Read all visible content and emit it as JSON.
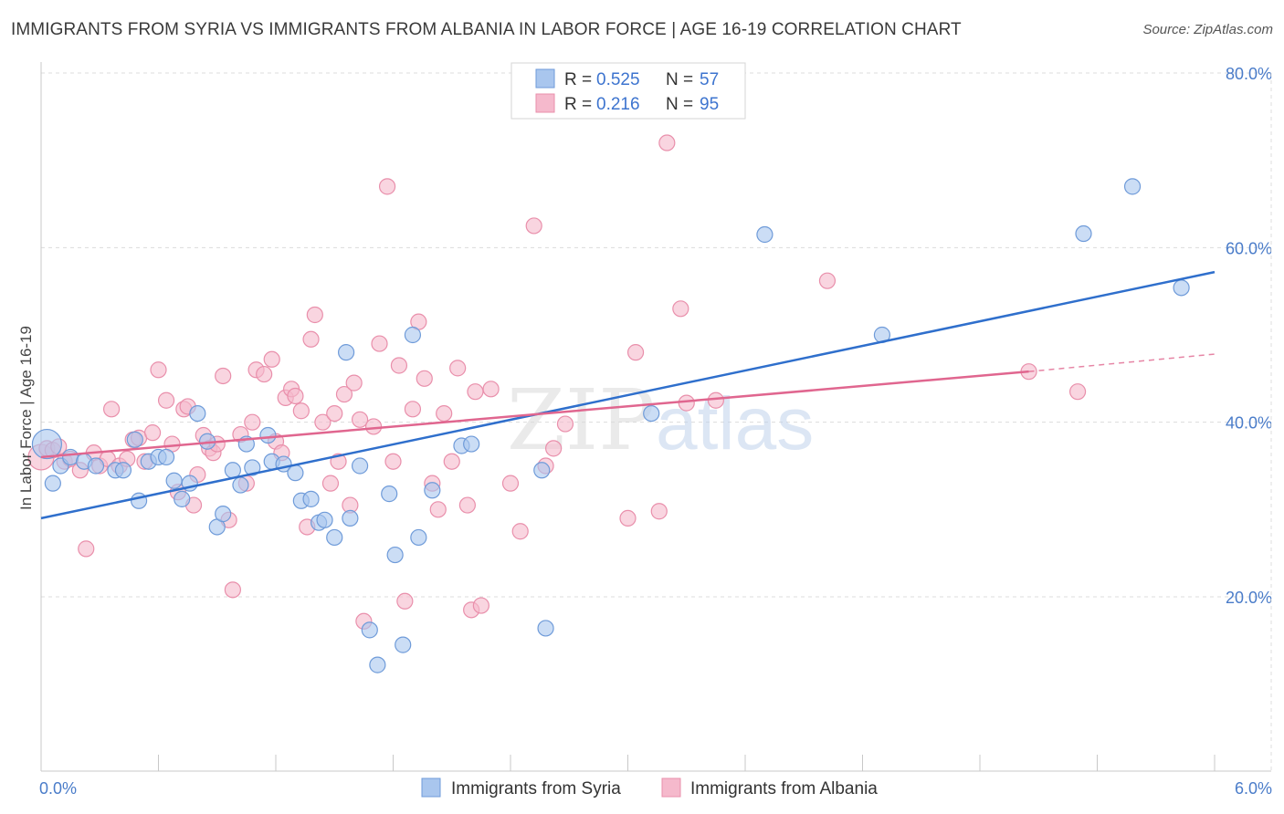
{
  "title": "IMMIGRANTS FROM SYRIA VS IMMIGRANTS FROM ALBANIA IN LABOR FORCE | AGE 16-19 CORRELATION CHART",
  "source": "Source: ZipAtlas.com",
  "watermark": {
    "zip": "ZIP",
    "atlas": "atlas"
  },
  "colors": {
    "syria_fill": "#a9c6ee",
    "syria_stroke": "#6f9bd9",
    "syria_line": "#2f6fcc",
    "albania_fill": "#f5b9cc",
    "albania_stroke": "#e98fab",
    "albania_line": "#e0668f",
    "grid": "#dcdcdc",
    "axis_text": "#4a7cc9"
  },
  "legend": {
    "r_label": "R =",
    "n_label": "N =",
    "items": [
      {
        "r": "0.525",
        "n": "57"
      },
      {
        "r": "0.216",
        "n": "95"
      }
    ]
  },
  "bottom_legend": [
    "Immigrants from Syria",
    "Immigrants from Albania"
  ],
  "chart_data": {
    "type": "scatter",
    "title": "IMMIGRANTS FROM SYRIA VS IMMIGRANTS FROM ALBANIA IN LABOR FORCE | AGE 16-19 CORRELATION CHART",
    "xlabel": "",
    "ylabel": "In Labor Force | Age 16-19",
    "xlim": [
      0,
      6
    ],
    "ylim": [
      0,
      82
    ],
    "x_tick_labels": [
      "0.0%",
      "6.0%"
    ],
    "y_ticks": [
      20,
      40,
      60,
      80
    ],
    "y_tick_labels": [
      "20.0%",
      "40.0%",
      "60.0%",
      "80.0%"
    ],
    "grid": true,
    "legend_position": "top-center",
    "series": [
      {
        "name": "Immigrants from Syria",
        "r": 0.525,
        "n": 57,
        "trend": {
          "x": [
            0,
            6
          ],
          "y": [
            29.0,
            57.2
          ]
        },
        "points": [
          [
            0.03,
            37.5
          ],
          [
            0.06,
            33.0
          ],
          [
            0.1,
            35.0
          ],
          [
            0.15,
            36.0
          ],
          [
            0.22,
            35.5
          ],
          [
            0.28,
            35.0
          ],
          [
            0.38,
            34.5
          ],
          [
            0.42,
            34.5
          ],
          [
            0.48,
            38.0
          ],
          [
            0.5,
            31.0
          ],
          [
            0.55,
            35.5
          ],
          [
            0.6,
            36.0
          ],
          [
            0.64,
            36.0
          ],
          [
            0.68,
            33.3
          ],
          [
            0.72,
            31.2
          ],
          [
            0.76,
            33.0
          ],
          [
            0.8,
            41.0
          ],
          [
            0.85,
            37.8
          ],
          [
            0.9,
            28.0
          ],
          [
            0.93,
            29.5
          ],
          [
            0.98,
            34.5
          ],
          [
            1.02,
            32.8
          ],
          [
            1.05,
            37.5
          ],
          [
            1.08,
            34.8
          ],
          [
            1.16,
            38.5
          ],
          [
            1.18,
            35.5
          ],
          [
            1.24,
            35.2
          ],
          [
            1.3,
            34.2
          ],
          [
            1.33,
            31.0
          ],
          [
            1.38,
            31.2
          ],
          [
            1.42,
            28.5
          ],
          [
            1.45,
            28.8
          ],
          [
            1.5,
            26.8
          ],
          [
            1.56,
            48.0
          ],
          [
            1.58,
            29.0
          ],
          [
            1.63,
            35.0
          ],
          [
            1.68,
            16.2
          ],
          [
            1.72,
            12.2
          ],
          [
            1.78,
            31.8
          ],
          [
            1.81,
            24.8
          ],
          [
            1.85,
            14.5
          ],
          [
            1.9,
            50.0
          ],
          [
            1.93,
            26.8
          ],
          [
            2.0,
            32.2
          ],
          [
            2.15,
            37.3
          ],
          [
            2.2,
            37.5
          ],
          [
            2.56,
            34.5
          ],
          [
            2.58,
            16.4
          ],
          [
            3.12,
            41.0
          ],
          [
            3.7,
            61.5
          ],
          [
            4.3,
            50.0
          ],
          [
            5.33,
            61.6
          ],
          [
            5.58,
            67.0
          ],
          [
            5.83,
            55.4
          ]
        ]
      },
      {
        "name": "Immigrants from Albania",
        "r": 0.216,
        "n": 95,
        "trend": {
          "x": [
            0,
            5.05
          ],
          "y": [
            36.0,
            45.8
          ]
        },
        "trend_dashed": {
          "x": [
            5.05,
            6
          ],
          "y": [
            45.8,
            47.8
          ]
        },
        "points": [
          [
            0.0,
            36.0
          ],
          [
            0.03,
            37.0
          ],
          [
            0.06,
            36.8
          ],
          [
            0.09,
            37.2
          ],
          [
            0.12,
            35.5
          ],
          [
            0.15,
            35.8
          ],
          [
            0.2,
            34.5
          ],
          [
            0.23,
            25.5
          ],
          [
            0.27,
            36.5
          ],
          [
            0.3,
            35.0
          ],
          [
            0.34,
            35.8
          ],
          [
            0.36,
            41.5
          ],
          [
            0.4,
            35.0
          ],
          [
            0.44,
            35.8
          ],
          [
            0.47,
            38.0
          ],
          [
            0.5,
            38.2
          ],
          [
            0.53,
            35.5
          ],
          [
            0.57,
            38.8
          ],
          [
            0.6,
            46.0
          ],
          [
            0.64,
            42.5
          ],
          [
            0.67,
            37.5
          ],
          [
            0.7,
            32.0
          ],
          [
            0.73,
            41.5
          ],
          [
            0.75,
            41.8
          ],
          [
            0.78,
            30.5
          ],
          [
            0.8,
            34.0
          ],
          [
            0.83,
            38.5
          ],
          [
            0.86,
            37.0
          ],
          [
            0.88,
            36.5
          ],
          [
            0.9,
            37.5
          ],
          [
            0.93,
            45.3
          ],
          [
            0.96,
            28.8
          ],
          [
            0.98,
            20.8
          ],
          [
            1.02,
            38.6
          ],
          [
            1.05,
            33.0
          ],
          [
            1.08,
            40.0
          ],
          [
            1.1,
            46.0
          ],
          [
            1.14,
            45.5
          ],
          [
            1.18,
            47.2
          ],
          [
            1.2,
            37.8
          ],
          [
            1.23,
            36.5
          ],
          [
            1.25,
            42.8
          ],
          [
            1.28,
            43.8
          ],
          [
            1.3,
            43.0
          ],
          [
            1.33,
            41.3
          ],
          [
            1.36,
            28.0
          ],
          [
            1.38,
            49.5
          ],
          [
            1.4,
            52.3
          ],
          [
            1.44,
            40.0
          ],
          [
            1.48,
            33.0
          ],
          [
            1.5,
            41.0
          ],
          [
            1.52,
            35.5
          ],
          [
            1.55,
            43.2
          ],
          [
            1.58,
            30.5
          ],
          [
            1.6,
            44.5
          ],
          [
            1.63,
            40.3
          ],
          [
            1.65,
            17.2
          ],
          [
            1.7,
            39.5
          ],
          [
            1.73,
            49.0
          ],
          [
            1.77,
            67.0
          ],
          [
            1.8,
            35.5
          ],
          [
            1.83,
            46.5
          ],
          [
            1.86,
            19.5
          ],
          [
            1.9,
            41.5
          ],
          [
            1.93,
            51.5
          ],
          [
            1.96,
            45.0
          ],
          [
            2.0,
            33.0
          ],
          [
            2.03,
            30.0
          ],
          [
            2.06,
            41.0
          ],
          [
            2.1,
            35.5
          ],
          [
            2.13,
            46.2
          ],
          [
            2.18,
            30.5
          ],
          [
            2.2,
            18.5
          ],
          [
            2.22,
            43.5
          ],
          [
            2.25,
            19.0
          ],
          [
            2.3,
            43.8
          ],
          [
            2.4,
            33.0
          ],
          [
            2.45,
            27.5
          ],
          [
            2.52,
            62.5
          ],
          [
            2.58,
            35.0
          ],
          [
            2.62,
            37.0
          ],
          [
            2.68,
            39.8
          ],
          [
            3.0,
            29.0
          ],
          [
            3.04,
            48.0
          ],
          [
            3.16,
            29.8
          ],
          [
            3.2,
            72.0
          ],
          [
            3.27,
            53.0
          ],
          [
            3.3,
            42.2
          ],
          [
            3.45,
            42.5
          ],
          [
            4.02,
            56.2
          ],
          [
            5.05,
            45.8
          ],
          [
            5.3,
            43.5
          ]
        ]
      }
    ]
  }
}
